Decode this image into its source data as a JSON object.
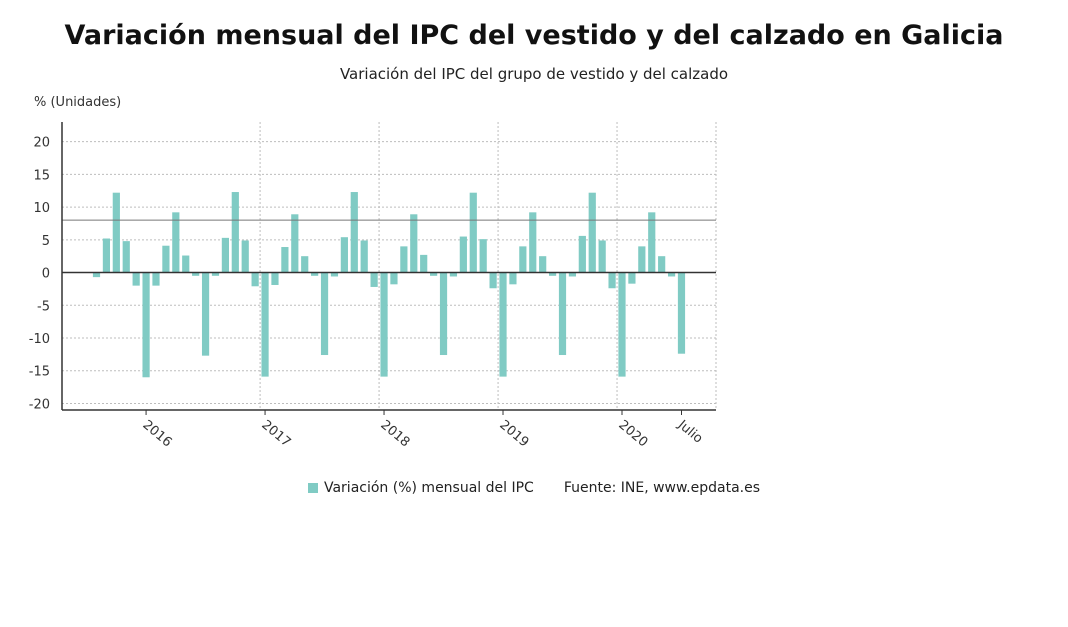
{
  "header": {
    "title": "Variación mensual del IPC del vestido y del calzado en Galicia",
    "subtitle": "Variación del IPC del grupo de vestido y del calzado"
  },
  "legend": {
    "series_label": "Variación (%) mensual del IPC",
    "source": "Fuente: INE, www.epdata.es"
  },
  "colors": {
    "bar": "#80cbc4",
    "reference_line": "#777777",
    "grid": "#bdbdbd",
    "axis": "#333333"
  },
  "chart_data": {
    "type": "bar",
    "ylabel": "% (Unidades)",
    "ylim": [
      -21,
      23
    ],
    "yticks": [
      20,
      15,
      10,
      5,
      0,
      -5,
      -10,
      -15,
      -20
    ],
    "reference_line": 8,
    "grid": true,
    "x_tick_labels": [
      {
        "label": "2016",
        "month": "2016-01"
      },
      {
        "label": "2017",
        "month": "2017-01"
      },
      {
        "label": "2018",
        "month": "2018-01"
      },
      {
        "label": "2019",
        "month": "2019-01"
      },
      {
        "label": "2020",
        "month": "2020-01"
      },
      {
        "label": "Julio",
        "month": "2020-07"
      }
    ],
    "series": [
      {
        "name": "Variación (%) mensual del IPC",
        "months": [
          "2015-08",
          "2015-09",
          "2015-10",
          "2015-11",
          "2015-12",
          "2016-01",
          "2016-02",
          "2016-03",
          "2016-04",
          "2016-05",
          "2016-06",
          "2016-07",
          "2016-08",
          "2016-09",
          "2016-10",
          "2016-11",
          "2016-12",
          "2017-01",
          "2017-02",
          "2017-03",
          "2017-04",
          "2017-05",
          "2017-06",
          "2017-07",
          "2017-08",
          "2017-09",
          "2017-10",
          "2017-11",
          "2017-12",
          "2018-01",
          "2018-02",
          "2018-03",
          "2018-04",
          "2018-05",
          "2018-06",
          "2018-07",
          "2018-08",
          "2018-09",
          "2018-10",
          "2018-11",
          "2018-12",
          "2019-01",
          "2019-02",
          "2019-03",
          "2019-04",
          "2019-05",
          "2019-06",
          "2019-07",
          "2019-08",
          "2019-09",
          "2019-10",
          "2019-11",
          "2019-12",
          "2020-01",
          "2020-02",
          "2020-03",
          "2020-04",
          "2020-05",
          "2020-06",
          "2020-07"
        ],
        "values": [
          -0.7,
          5.2,
          12.2,
          4.8,
          -2.0,
          -16.0,
          -2.0,
          4.1,
          9.2,
          2.6,
          -0.5,
          -12.7,
          -0.5,
          5.3,
          12.3,
          4.9,
          -2.1,
          -15.9,
          -1.9,
          3.9,
          8.9,
          2.5,
          -0.5,
          -12.6,
          -0.6,
          5.4,
          12.3,
          4.9,
          -2.2,
          -15.9,
          -1.8,
          4.0,
          8.9,
          2.7,
          -0.5,
          -12.6,
          -0.6,
          5.5,
          12.2,
          5.1,
          -2.4,
          -15.9,
          -1.8,
          4.0,
          9.2,
          2.5,
          -0.5,
          -12.6,
          -0.6,
          5.6,
          12.2,
          4.9,
          -2.4,
          -15.9,
          -1.7,
          4.0,
          9.2,
          2.5,
          -0.6,
          -12.4
        ]
      }
    ]
  }
}
